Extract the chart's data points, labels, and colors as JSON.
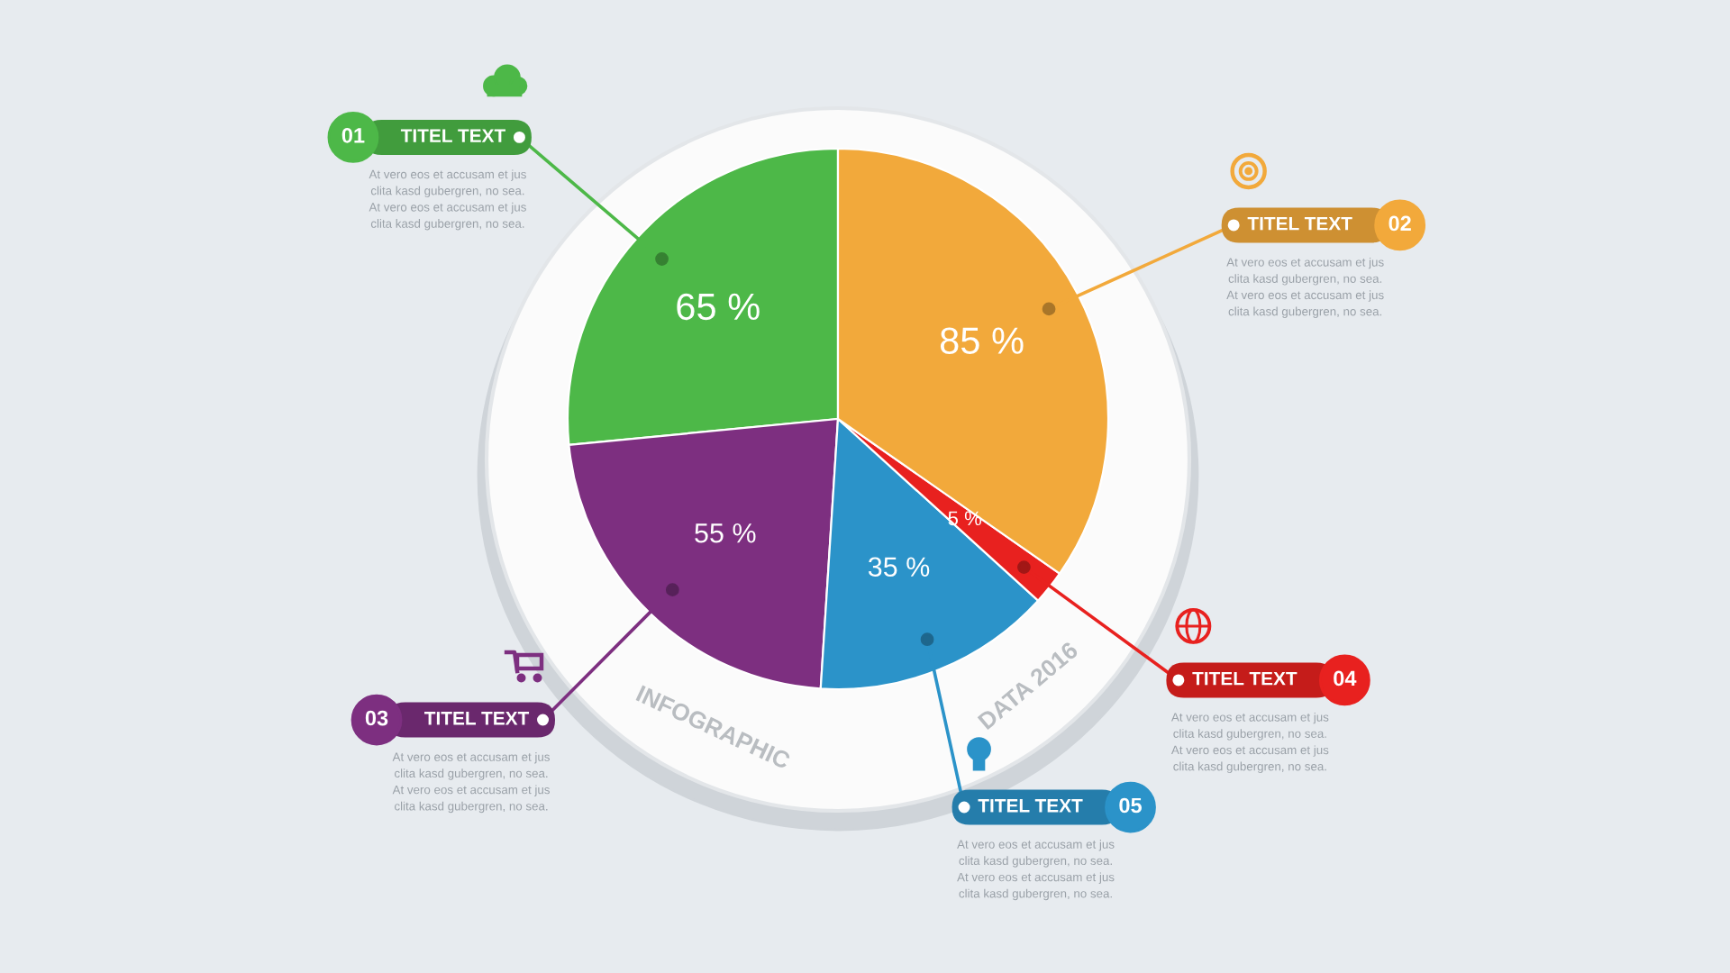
{
  "chart_data": {
    "type": "pie",
    "categories": [
      "TITEL TEXT",
      "TITEL TEXT",
      "TITEL TEXT",
      "TITEL TEXT",
      "TITEL TEXT"
    ],
    "values": [
      65,
      55,
      35,
      5,
      85
    ],
    "colors": [
      "#4db848",
      "#7d2f80",
      "#2b93c9",
      "#e8211f",
      "#f2a93b"
    ],
    "value_labels": [
      "65 %",
      "55 %",
      "35 %",
      "5 %",
      "85 %"
    ],
    "annotations": [
      "01",
      "03",
      "05",
      "04",
      "02",
      "At vero eos et accusam et jus\nclita kasd gubergren, no sea.\nAt vero eos et accusam et jus\nclita kasd gubergren, no sea.",
      "At vero eos et accusam et jus\nclita kasd gubergren, no sea.\nAt vero eos et accusam et jus\nclita kasd gubergren, no sea.",
      "At vero eos et accusam et jus\nclita kasd gubergren, no sea.\nAt vero eos et accusam et jus\nclita kasd gubergren, no sea.",
      "At vero eos et accusam et jus\nclita kasd gubergren, no sea.\nAt vero eos et accusam et jus\nclita kasd gubergren, no sea.",
      "At vero eos et accusam et jus\nclita kasd gubergren, no sea.\nAt vero eos et accusam et jus\nclita kasd gubergren, no sea.",
      "INFOGRAPHIC",
      "DATA 2016"
    ]
  }
}
